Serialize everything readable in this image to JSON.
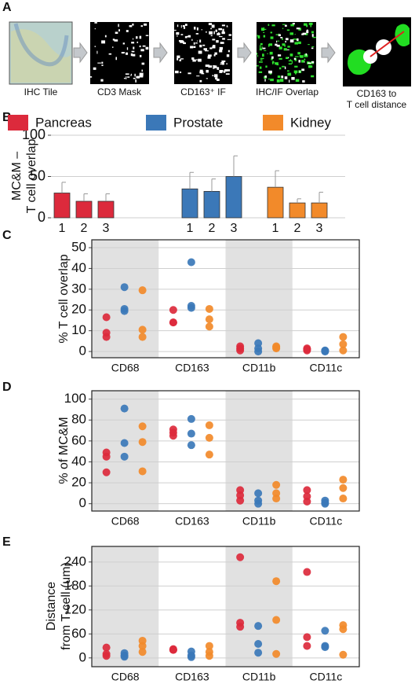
{
  "pipeline": {
    "panel": "A",
    "steps": [
      "IHC Tile",
      "CD3 Mask",
      "CD163⁺ IF",
      "IHC/IF Overlap",
      [
        "CD163 to",
        "T cell distance"
      ]
    ]
  },
  "chart_data": [
    {
      "type": "bar",
      "panel": "B",
      "ylabel": [
        "MC&M –",
        "T cell overlap"
      ],
      "categories": [
        "1",
        "2",
        "3"
      ],
      "ylim": [
        0,
        100
      ],
      "yticks": [
        0,
        50,
        100
      ],
      "grid": true,
      "series": [
        {
          "name": "Pancreas",
          "color": "#dc2a3c",
          "values": [
            30,
            20,
            20
          ],
          "errors": [
            13,
            9,
            9
          ]
        },
        {
          "name": "Prostate",
          "color": "#3b78b8",
          "values": [
            35,
            32,
            50
          ],
          "errors": [
            20,
            15,
            25
          ]
        },
        {
          "name": "Kidney",
          "color": "#f28a2a",
          "values": [
            37,
            18,
            18
          ],
          "errors": [
            20,
            5,
            13
          ]
        }
      ]
    },
    {
      "type": "strip",
      "panel": "C",
      "ylabel": "% T cell overlap",
      "categories": [
        "CD68",
        "CD163",
        "CD11b",
        "CD11c"
      ],
      "ylim": [
        -3,
        53.8
      ],
      "yticks": [
        0,
        10,
        20,
        30,
        40,
        50
      ],
      "grid": true,
      "series": [
        {
          "color": "#dc2a3c",
          "values": [
            [
              16.5,
              9,
              7
            ],
            [
              20,
              14,
              14
            ],
            [
              2.5,
              1.5,
              0.5
            ],
            [
              1.5,
              1,
              0.5
            ]
          ]
        },
        {
          "color": "#3b78b8",
          "values": [
            [
              31,
              20.5,
              19.5
            ],
            [
              43,
              22,
              21
            ],
            [
              4,
              1.5,
              0
            ],
            [
              0.5,
              0.3,
              0
            ]
          ]
        },
        {
          "color": "#f28a2a",
          "values": [
            [
              29.5,
              10.5,
              7
            ],
            [
              20.5,
              15.5,
              12
            ],
            [
              2.5,
              2,
              1.5
            ],
            [
              7,
              3.5,
              0.5
            ]
          ]
        }
      ]
    },
    {
      "type": "strip",
      "panel": "D",
      "ylabel": "% of MC&M",
      "categories": [
        "CD68",
        "CD163",
        "CD11b",
        "CD11c"
      ],
      "ylim": [
        -7,
        108
      ],
      "yticks": [
        0,
        20,
        40,
        60,
        80,
        100
      ],
      "grid": true,
      "series": [
        {
          "color": "#dc2a3c",
          "values": [
            [
              49,
              45,
              30
            ],
            [
              71,
              68,
              65
            ],
            [
              13,
              8,
              3
            ],
            [
              13,
              7,
              2
            ]
          ]
        },
        {
          "color": "#3b78b8",
          "values": [
            [
              91,
              58,
              45
            ],
            [
              81,
              67,
              56
            ],
            [
              10,
              3,
              0
            ],
            [
              3,
              1,
              0
            ]
          ]
        },
        {
          "color": "#f28a2a",
          "values": [
            [
              74,
              59,
              31
            ],
            [
              75,
              63,
              47
            ],
            [
              18,
              10,
              5
            ],
            [
              23,
              15,
              5
            ]
          ]
        }
      ]
    },
    {
      "type": "strip",
      "panel": "E",
      "ylabel": [
        "Distance",
        "from T-cell (um)"
      ],
      "categories": [
        "CD68",
        "CD163",
        "CD11b",
        "CD11c"
      ],
      "ylim": [
        -22,
        279
      ],
      "yticks": [
        0,
        60,
        120,
        180,
        240
      ],
      "grid": true,
      "series": [
        {
          "color": "#dc2a3c",
          "values": [
            [
              26,
              10,
              5
            ],
            [
              22,
              20,
              20
            ],
            [
              252,
              88,
              78
            ],
            [
              215,
              52,
              30
            ]
          ]
        },
        {
          "color": "#3b78b8",
          "values": [
            [
              12,
              6,
              3
            ],
            [
              16,
              6,
              2
            ],
            [
              80,
              35,
              13
            ],
            [
              68,
              30,
              27
            ]
          ]
        },
        {
          "color": "#f28a2a",
          "values": [
            [
              43,
              30,
              15
            ],
            [
              30,
              15,
              5
            ],
            [
              192,
              95,
              10
            ],
            [
              82,
              72,
              8
            ]
          ]
        }
      ]
    }
  ]
}
